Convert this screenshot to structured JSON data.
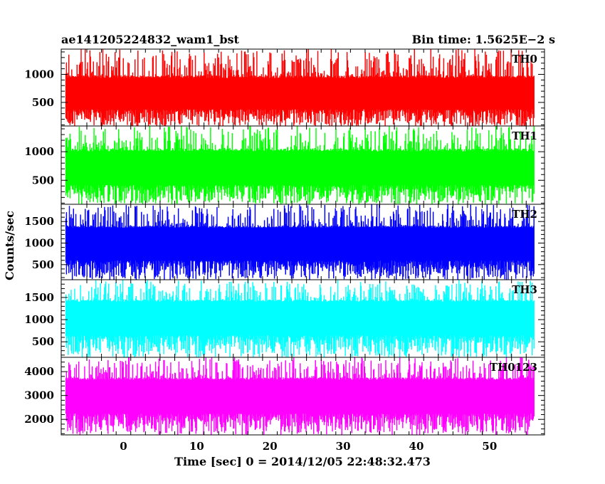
{
  "header": {
    "left_title": "ae141205224832_wam1_bst",
    "right_title": "Bin time: 1.5625E−2 s"
  },
  "chart_data": {
    "type": "line",
    "title": "ae141205224832_wam1_bst",
    "bin_time_label": "Bin time: 1.5625E−2 s",
    "xlabel": "Time [sec] 0 = 2014/12/05 22:48:32.473",
    "ylabel": "Counts/sec",
    "xlim": [
      -8.5,
      57.5
    ],
    "x_data_range": [
      -7.9,
      56.1
    ],
    "x_ticks": [
      0,
      10,
      20,
      30,
      40,
      50
    ],
    "x_tick_labels": [
      "0",
      "10",
      "20",
      "30",
      "40",
      "50"
    ],
    "grid": false,
    "panels": [
      {
        "name": "TH0",
        "color": "#ff0000",
        "ylim": [
          80,
          1450
        ],
        "y_ticks": [
          500,
          1000
        ],
        "y_tick_labels": [
          "500",
          "1000"
        ],
        "low_range": [
          60,
          350
        ],
        "mid_range": [
          380,
          930
        ],
        "high_range": [
          980,
          1450
        ]
      },
      {
        "name": "TH1",
        "color": "#00ff00",
        "ylim": [
          80,
          1450
        ],
        "y_ticks": [
          500,
          1000
        ],
        "y_tick_labels": [
          "500",
          "1000"
        ],
        "low_range": [
          80,
          380
        ],
        "mid_range": [
          420,
          1000
        ],
        "high_range": [
          1050,
          1450
        ]
      },
      {
        "name": "TH2",
        "color": "#0000ff",
        "ylim": [
          150,
          1900
        ],
        "y_ticks": [
          500,
          1000,
          1500
        ],
        "y_tick_labels": [
          "500",
          "1000",
          "1500"
        ],
        "low_range": [
          150,
          550
        ],
        "mid_range": [
          600,
          1350
        ],
        "high_range": [
          1400,
          1900
        ]
      },
      {
        "name": "TH3",
        "color": "#00ffff",
        "ylim": [
          150,
          1900
        ],
        "y_ticks": [
          500,
          1000,
          1500
        ],
        "y_tick_labels": [
          "500",
          "1000",
          "1500"
        ],
        "low_range": [
          150,
          600
        ],
        "mid_range": [
          650,
          1400
        ],
        "high_range": [
          1450,
          1900
        ]
      },
      {
        "name": "TH0123",
        "color": "#ff00ff",
        "ylim": [
          1350,
          4600
        ],
        "y_ticks": [
          2000,
          3000,
          4000
        ],
        "y_tick_labels": [
          "2000",
          "3000",
          "4000"
        ],
        "low_range": [
          1350,
          2150
        ],
        "mid_range": [
          2250,
          3650
        ],
        "high_range": [
          3750,
          4600
        ]
      }
    ]
  }
}
